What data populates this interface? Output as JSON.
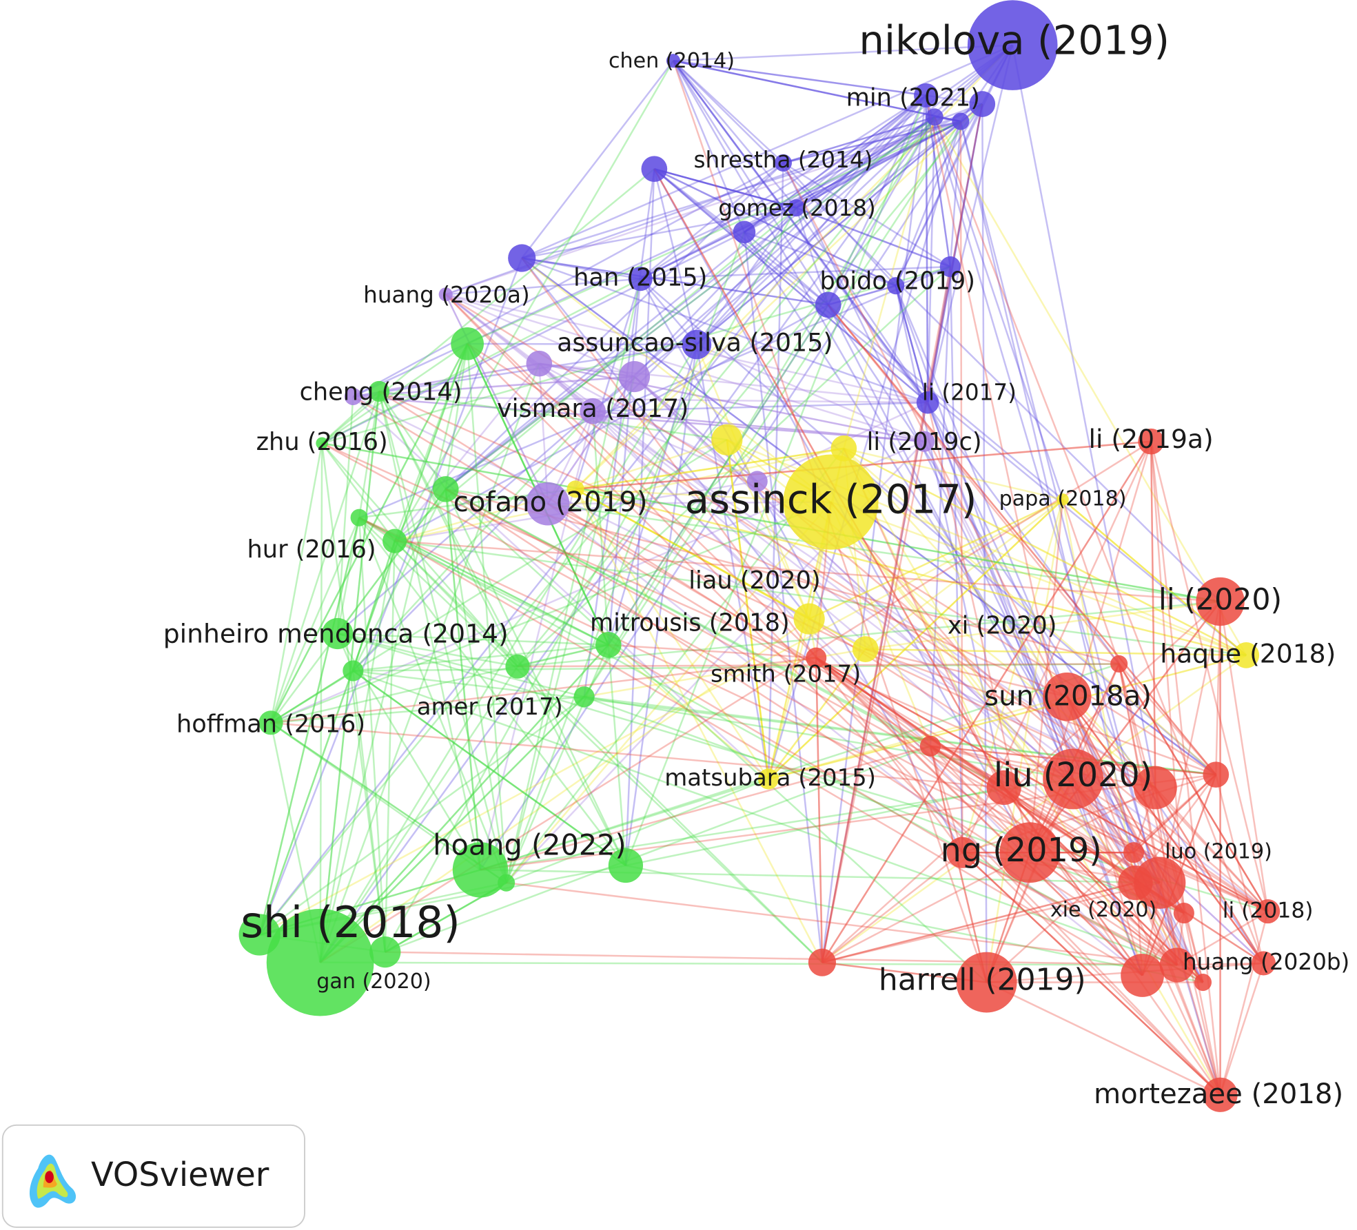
{
  "network": {
    "labels": [
      "nikolova (2019)",
      "min (2021)",
      "chen (2014)",
      "shrestha (2014)",
      "gomez (2018)",
      "han (2015)",
      "boido (2019)",
      "huang (2020a)",
      "assuncao-silva (2015)",
      "li (2017)",
      "cheng (2014)",
      "vismara (2017)",
      "li (2019c)",
      "li (2019a)",
      "zhu (2016)",
      "cofano (2019)",
      "assinck (2017)",
      "papa (2018)",
      "hur (2016)",
      "liau (2020)",
      "li (2020)",
      "pinheiro mendonca (2014)",
      "mitrousis (2018)",
      "xi (2020)",
      "haque (2018)",
      "smith (2017)",
      "sun (2018a)",
      "amer (2017)",
      "hoffman (2016)",
      "matsubara (2015)",
      "liu (2020)",
      "hoang (2022)",
      "ng (2019)",
      "luo (2019)",
      "xie (2020)",
      "li (2018)",
      "shi (2018)",
      "huang (2020b)",
      "harrell (2019)",
      "gan (2020)",
      "mortezaee (2018)"
    ]
  },
  "branding": {
    "logo_text": "VOSviewer"
  }
}
